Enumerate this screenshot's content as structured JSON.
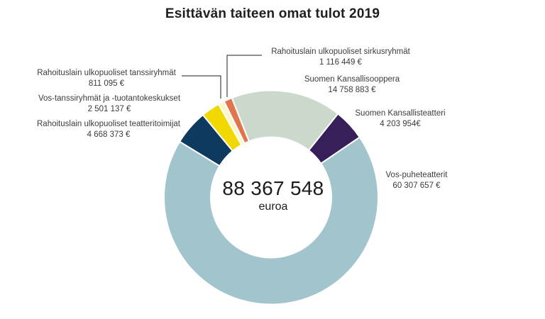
{
  "title": "Esittävän taiteen omat tulot 2019",
  "center": {
    "total": "88 367 548",
    "unit": "euroa"
  },
  "chart_data": {
    "type": "pie",
    "subtype": "donut",
    "title": "Esittävän taiteen omat tulot 2019",
    "center_text": "88 367 548 euroa",
    "total_value": 88367548,
    "start_angle_deg": -21.5,
    "direction": "clockwise",
    "grid": false,
    "legend_position": "labels-around-chart",
    "segments": [
      {
        "id": "kansallisooppera",
        "label": "Suomen Kansallisooppera",
        "value": 14758883,
        "value_display": "14 758 883 €",
        "color": "#cbd8cc"
      },
      {
        "id": "kansallisteatteri",
        "label": "Suomen Kansallisteatteri",
        "value": 4203954,
        "value_display": "4 203 954€",
        "color": "#37205a"
      },
      {
        "id": "vos-puheteatterit",
        "label": "Vos-puheteatterit",
        "value": 60307657,
        "value_display": "60 307 657 €",
        "color": "#a2c5cd"
      },
      {
        "id": "teatteritoimijat",
        "label": "Rahoituslain ulkopuoliset teatteritoimijat",
        "value": 4668373,
        "value_display": "4 668 373 €",
        "color": "#0f3a5f"
      },
      {
        "id": "vos-tanssiryhmat",
        "label": "Vos-tanssiryhmät ja -tuotantokeskukset",
        "value": 2501137,
        "value_display": "2 501 137 €",
        "color": "#f0d800"
      },
      {
        "id": "tanssiryhmat",
        "label": "Rahoituslain ulkopuoliset tanssiryhmät",
        "value": 811095,
        "value_display": "811 095 €",
        "color": "#fbf5c8"
      },
      {
        "id": "sirkusryhmat",
        "label": "Rahoituslain ulkopuoliset sirkusryhmät",
        "value": 1116449,
        "value_display": "1 116 449 €",
        "color": "#e1754e"
      }
    ]
  }
}
